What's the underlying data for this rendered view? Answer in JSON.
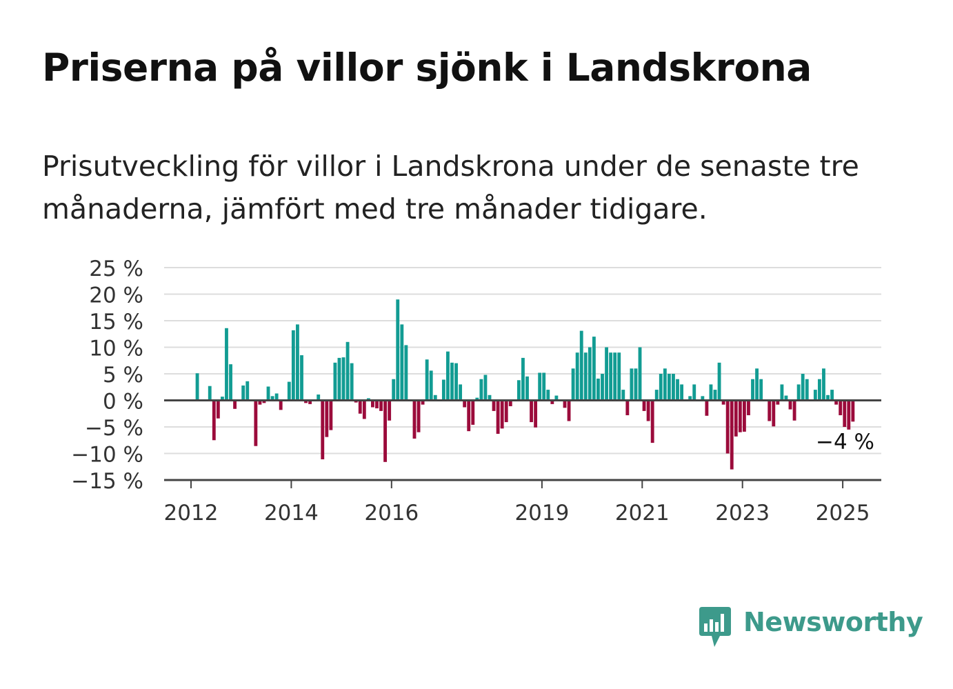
{
  "header": {
    "title": "Priserna på villor sjönk i Landskrona",
    "subtitle": "Prisutveckling för villor i Landskrona under de senaste tre månaderna, jämfört med tre månader tidigare."
  },
  "brand": {
    "name": "Newsworthy",
    "color": "#3d9a8b",
    "icon": "newsworthy-logo-icon"
  },
  "colors": {
    "positive": "#129c93",
    "negative": "#9b0b3b",
    "grid": "#dddddd",
    "axis": "#444444"
  },
  "chart_data": {
    "type": "bar",
    "title": "Priserna på villor sjönk i Landskrona",
    "subtitle": "Prisutveckling för villor i Landskrona under de senaste tre månaderna, jämfört med tre månader tidigare.",
    "xlabel": "",
    "ylabel": "",
    "ylim": [
      -15,
      25
    ],
    "y_ticks": [
      25,
      20,
      15,
      10,
      5,
      0,
      -5,
      -10,
      -15
    ],
    "y_tick_labels": [
      "25 %",
      "20 %",
      "15 %",
      "10 %",
      "5 %",
      "0 %",
      "−5 %",
      "−10 %",
      "−15 %"
    ],
    "x_ticks": [
      2012,
      2014,
      2016,
      2019,
      2021,
      2023,
      2025
    ],
    "x_tick_labels": [
      "2012",
      "2014",
      "2016",
      "2019",
      "2021",
      "2023",
      "2025"
    ],
    "x_start": 2012,
    "x_step": 0.0833,
    "last_value_label": "−4 %",
    "grid": true,
    "legend": "none",
    "values": [
      0,
      5.1,
      0,
      0,
      2.7,
      -7.5,
      -3.4,
      0.7,
      13.6,
      6.8,
      -1.6,
      0,
      2.8,
      3.6,
      0,
      -8.6,
      -0.8,
      -0.5,
      2.6,
      0.8,
      1.3,
      -1.8,
      0,
      3.5,
      13.2,
      14.3,
      8.5,
      -0.5,
      -0.7,
      0,
      1.1,
      -11.1,
      -6.9,
      -5.6,
      7.1,
      8.0,
      8.1,
      11.0,
      7.0,
      -0.4,
      -2.5,
      -3.5,
      0.4,
      -1.3,
      -1.5,
      -2.0,
      -11.6,
      -3.8,
      4.0,
      19.0,
      14.3,
      10.4,
      0.2,
      -7.2,
      -6.0,
      -0.8,
      7.7,
      5.6,
      1.0,
      0,
      3.9,
      9.2,
      7.1,
      7.0,
      3.0,
      -1.3,
      -5.8,
      -4.6,
      0.5,
      4.0,
      4.8,
      1.0,
      -2.0,
      -6.3,
      -5.3,
      -4.1,
      -1.1,
      0,
      3.8,
      8.0,
      4.5,
      -4.1,
      -5.1,
      5.2,
      5.2,
      2.0,
      -0.7,
      0.9,
      0,
      -1.4,
      -3.9,
      6.0,
      9.0,
      13.1,
      9.0,
      10.0,
      12.0,
      4.1,
      5.0,
      10.0,
      9.0,
      9.0,
      9.0,
      2.0,
      -2.8,
      6.0,
      6.0,
      10.0,
      -2.0,
      -3.9,
      -8.0,
      2.0,
      5.0,
      6.0,
      5.0,
      5.0,
      4.0,
      3.0,
      0,
      0.8,
      3.0,
      0,
      0.8,
      -2.9,
      3.0,
      2.0,
      7.1,
      -0.8,
      -10.0,
      -13.0,
      -6.8,
      -6.0,
      -5.9,
      -2.8,
      4.0,
      6.0,
      4.0,
      0,
      -3.9,
      -4.9,
      -0.8,
      3.0,
      0.9,
      -1.7,
      -3.8,
      3.0,
      5.0,
      4.0,
      0,
      2.0,
      4.0,
      6.0,
      1.0,
      2.0,
      -0.8,
      -2.8,
      -5.0,
      -5.5,
      -4.0
    ]
  }
}
